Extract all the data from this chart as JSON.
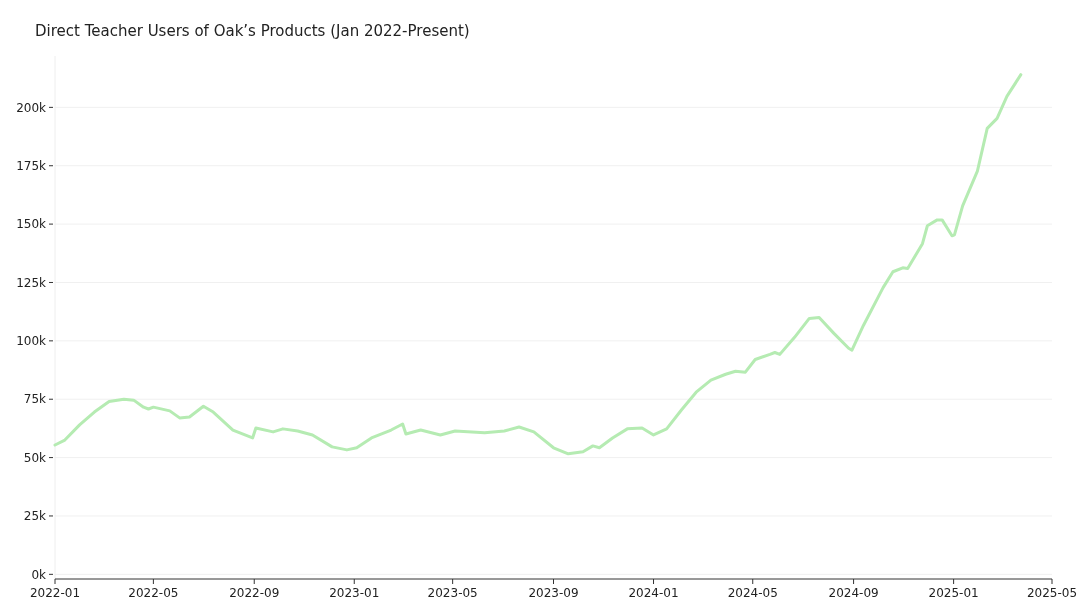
{
  "chart_data": {
    "type": "line",
    "title": "Direct Teacher Users of Oak’s Products (Jan 2022-Present)",
    "x": [
      "2022-01-01",
      "2022-01-13",
      "2022-01-31",
      "2022-02-18",
      "2022-03-08",
      "2022-03-26",
      "2022-04-07",
      "2022-04-19",
      "2022-04-25",
      "2022-05-01",
      "2022-05-21",
      "2022-06-02",
      "2022-06-14",
      "2022-07-01",
      "2022-07-13",
      "2022-08-06",
      "2022-08-30",
      "2022-09-03",
      "2022-09-24",
      "2022-10-06",
      "2022-10-24",
      "2022-11-11",
      "2022-12-05",
      "2022-12-23",
      "2023-01-04",
      "2023-01-22",
      "2023-02-15",
      "2023-03-01",
      "2023-03-05",
      "2023-03-23",
      "2023-04-16",
      "2023-05-04",
      "2023-06-09",
      "2023-07-03",
      "2023-07-21",
      "2023-08-08",
      "2023-09-01",
      "2023-09-19",
      "2023-10-07",
      "2023-10-19",
      "2023-10-27",
      "2023-11-12",
      "2023-11-30",
      "2023-12-18",
      "2024-01-01",
      "2024-01-17",
      "2024-02-04",
      "2024-02-22",
      "2024-03-11",
      "2024-03-29",
      "2024-04-10",
      "2024-04-22",
      "2024-05-04",
      "2024-05-22",
      "2024-05-28",
      "2024-06-03",
      "2024-06-21",
      "2024-07-09",
      "2024-07-21",
      "2024-08-08",
      "2024-08-26",
      "2024-08-30",
      "2024-09-13",
      "2024-10-07",
      "2024-10-19",
      "2024-10-31",
      "2024-11-06",
      "2024-11-24",
      "2024-11-30",
      "2024-12-12",
      "2024-12-18",
      "2024-12-30",
      "2025-01-02",
      "2025-01-12",
      "2025-01-30",
      "2025-02-11",
      "2025-02-23",
      "2025-03-07",
      "2025-03-24"
    ],
    "series": [
      {
        "color": "#b5ebb2",
        "values": [
          55400,
          57500,
          64000,
          69500,
          74000,
          75000,
          74600,
          71600,
          70800,
          71600,
          70000,
          67000,
          67400,
          72000,
          69500,
          61800,
          58400,
          62700,
          61000,
          62300,
          61400,
          59700,
          54600,
          53300,
          54200,
          58400,
          61800,
          64400,
          60100,
          61800,
          59700,
          61400,
          60600,
          61400,
          63100,
          61000,
          54200,
          51600,
          52500,
          55000,
          54200,
          58400,
          62300,
          62700,
          59700,
          62300,
          70400,
          78000,
          83200,
          85700,
          87000,
          86600,
          92000,
          94200,
          95000,
          94200,
          101500,
          109600,
          110000,
          103200,
          96800,
          96000,
          106600,
          122800,
          129600,
          131300,
          131000,
          141600,
          149300,
          151800,
          151800,
          145000,
          145400,
          157800,
          172700,
          191000,
          195300,
          204700,
          214000
        ]
      }
    ],
    "xlim": [
      "2022-01-01",
      "2025-05-01"
    ],
    "xticks": [
      "2022-01",
      "2022-05",
      "2022-09",
      "2023-01",
      "2023-05",
      "2023-09",
      "2024-01",
      "2024-05",
      "2024-09",
      "2025-01",
      "2025-05"
    ],
    "ylim": [
      -2000,
      222000
    ],
    "yticks": [
      {
        "value": 0,
        "label": "0k"
      },
      {
        "value": 25000,
        "label": "25k"
      },
      {
        "value": 50000,
        "label": "50k"
      },
      {
        "value": 75000,
        "label": "75k"
      },
      {
        "value": 100000,
        "label": "100k"
      },
      {
        "value": 125000,
        "label": "125k"
      },
      {
        "value": 150000,
        "label": "150k"
      },
      {
        "value": 175000,
        "label": "175k"
      },
      {
        "value": 200000,
        "label": "200k"
      }
    ],
    "grid": "y",
    "marker": "none",
    "line_style": "solid"
  }
}
